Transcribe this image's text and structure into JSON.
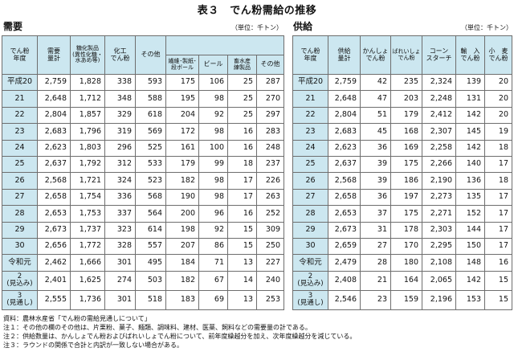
{
  "title": "表３　でん粉需給の推移",
  "demand": {
    "section_title": "需要",
    "unit": "（単位：千トン）",
    "headers": {
      "year": "でん粉\n年度",
      "total": "需要\n量計",
      "sugar": "糖化製品\n(異性化糖・\n水あめ等)",
      "modified": "化工\nでん粉",
      "other": "その他",
      "textile": "繊維･製紙･\n段ボール",
      "beer": "ビール",
      "livestock": "畜水産\n練製品",
      "other2": "その他"
    },
    "rows": [
      [
        "平成20",
        "2,759",
        "1,828",
        "338",
        "593",
        "175",
        "106",
        "25",
        "287"
      ],
      [
        "21",
        "2,648",
        "1,712",
        "348",
        "588",
        "195",
        "98",
        "25",
        "270"
      ],
      [
        "22",
        "2,804",
        "1,857",
        "329",
        "618",
        "204",
        "92",
        "25",
        "297"
      ],
      [
        "23",
        "2,683",
        "1,796",
        "319",
        "569",
        "172",
        "98",
        "16",
        "283"
      ],
      [
        "24",
        "2,623",
        "1,803",
        "296",
        "525",
        "161",
        "100",
        "16",
        "248"
      ],
      [
        "25",
        "2,637",
        "1,792",
        "312",
        "533",
        "179",
        "99",
        "18",
        "237"
      ],
      [
        "26",
        "2,568",
        "1,721",
        "324",
        "523",
        "182",
        "98",
        "17",
        "226"
      ],
      [
        "27",
        "2,658",
        "1,754",
        "336",
        "568",
        "190",
        "98",
        "17",
        "263"
      ],
      [
        "28",
        "2,653",
        "1,753",
        "337",
        "564",
        "200",
        "96",
        "16",
        "252"
      ],
      [
        "29",
        "2,673",
        "1,737",
        "323",
        "614",
        "198",
        "92",
        "15",
        "309"
      ],
      [
        "30",
        "2,656",
        "1,772",
        "328",
        "557",
        "207",
        "86",
        "15",
        "250"
      ],
      [
        "令和元",
        "2,462",
        "1,666",
        "301",
        "495",
        "184",
        "71",
        "13",
        "227"
      ],
      [
        "2\n(見込み)",
        "2,401",
        "1,625",
        "274",
        "503",
        "182",
        "67",
        "14",
        "240"
      ],
      [
        "3\n(見通し)",
        "2,555",
        "1,736",
        "301",
        "518",
        "183",
        "69",
        "13",
        "253"
      ]
    ]
  },
  "supply": {
    "section_title": "供給",
    "unit": "（単位：千トン）",
    "headers": {
      "year": "でん粉\n年度",
      "total": "供給\n量計",
      "sweetpotato": "かんしょ\nでん粉",
      "potato": "ばれいしょ\nでん粉",
      "corn": "コーン\nスターチ",
      "imported": "輸　入\nでん粉",
      "wheat": "小　麦\nでん粉"
    },
    "rows": [
      [
        "平成20",
        "2,759",
        "42",
        "235",
        "2,324",
        "139",
        "20"
      ],
      [
        "21",
        "2,648",
        "47",
        "203",
        "2,248",
        "131",
        "20"
      ],
      [
        "22",
        "2,804",
        "51",
        "179",
        "2,412",
        "142",
        "20"
      ],
      [
        "23",
        "2,683",
        "45",
        "168",
        "2,307",
        "145",
        "19"
      ],
      [
        "24",
        "2,623",
        "36",
        "169",
        "2,258",
        "142",
        "18"
      ],
      [
        "25",
        "2,637",
        "39",
        "175",
        "2,266",
        "140",
        "17"
      ],
      [
        "26",
        "2,568",
        "39",
        "186",
        "2,190",
        "136",
        "18"
      ],
      [
        "27",
        "2,658",
        "36",
        "197",
        "2,273",
        "135",
        "17"
      ],
      [
        "28",
        "2,653",
        "37",
        "175",
        "2,271",
        "152",
        "17"
      ],
      [
        "29",
        "2,673",
        "31",
        "178",
        "2,303",
        "144",
        "17"
      ],
      [
        "30",
        "2,659",
        "27",
        "170",
        "2,295",
        "150",
        "17"
      ],
      [
        "令和元",
        "2,479",
        "28",
        "180",
        "2,108",
        "148",
        "16"
      ],
      [
        "2\n(見込み)",
        "2,408",
        "21",
        "164",
        "2,065",
        "142",
        "15"
      ],
      [
        "3\n(見通し)",
        "2,546",
        "23",
        "159",
        "2,196",
        "153",
        "15"
      ]
    ]
  },
  "notes": [
    "資料：農林水産省「でん粉の需給見通しについて」",
    "注１：その他の欄のその他は、片栗粉、菓子、麺類、調味料、建材、医薬、飼料などの需要量の計である。",
    "注２：供給数量は、かんしょでん粉およびばれいしょでん粉について、前年度繰越分を加え、次年度繰越分を減じている。",
    "注３：ラウンドの関係で合計と内訳が一致しない場合がある。"
  ]
}
